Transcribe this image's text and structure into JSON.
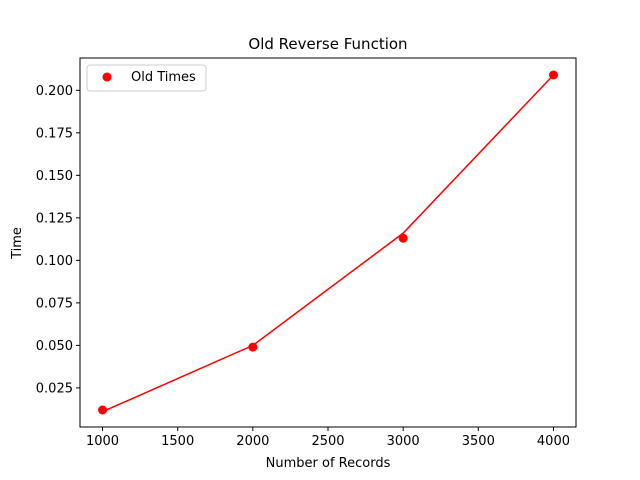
{
  "chart_data": {
    "type": "scatter",
    "title": "Old Reverse Function",
    "xlabel": "Number of Records",
    "ylabel": "Time",
    "xlim": [
      850,
      4150
    ],
    "ylim": [
      0.002,
      0.219
    ],
    "x_ticks": [
      1000,
      1500,
      2000,
      2500,
      3000,
      3500,
      4000
    ],
    "y_ticks": [
      0.025,
      0.05,
      0.075,
      0.1,
      0.125,
      0.15,
      0.175,
      0.2
    ],
    "x_tick_labels": [
      "1000",
      "1500",
      "2000",
      "2500",
      "3000",
      "3500",
      "4000"
    ],
    "y_tick_labels": [
      "0.025",
      "0.050",
      "0.075",
      "0.100",
      "0.125",
      "0.150",
      "0.175",
      "0.200"
    ],
    "grid": false,
    "legend_position": "upper-left",
    "series": [
      {
        "name": "Old Times",
        "style": "scatter",
        "color": "#ff0000",
        "x": [
          1000,
          2000,
          3000,
          4000
        ],
        "y": [
          0.012,
          0.049,
          0.113,
          0.209
        ]
      },
      {
        "style": "line",
        "color": "#ff0000",
        "x": [
          1000,
          2000,
          3000,
          4000
        ],
        "y": [
          0.011,
          0.05,
          0.116,
          0.209
        ]
      }
    ]
  }
}
